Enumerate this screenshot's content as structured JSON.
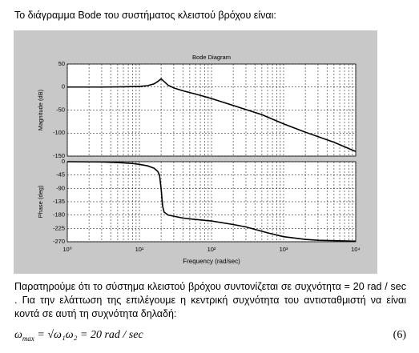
{
  "header_text": "Το διάγραμμα Bode του συστήματος κλειστού βρόχου είναι:",
  "chart_data": [
    {
      "type": "line",
      "title": "Bode Diagram",
      "y_label": "Magnitude (dB)",
      "xscale": "log",
      "grid": true,
      "xlim": [
        1,
        10000
      ],
      "ylim": [
        -150,
        50
      ],
      "yticks": [
        -150,
        -100,
        -50,
        0,
        50
      ],
      "series": [
        {
          "color": "#000000",
          "x": [
            1,
            3,
            6,
            10,
            13,
            16,
            18,
            20,
            22,
            25,
            30,
            40,
            50,
            70,
            100,
            200,
            500,
            1000,
            2000,
            5000,
            10000
          ],
          "values": [
            0,
            0,
            0.5,
            1.5,
            3,
            7,
            12,
            18,
            12,
            4,
            -2,
            -8,
            -12,
            -18,
            -25,
            -40,
            -60,
            -80,
            -98,
            -120,
            -140
          ]
        }
      ]
    },
    {
      "type": "line",
      "y_label": "Phase (deg)",
      "x_label": "Frequency (rad/sec)",
      "xscale": "log",
      "grid": true,
      "xlim": [
        1,
        10000
      ],
      "ylim": [
        -270,
        0
      ],
      "xticks": [
        {
          "value": 1,
          "label": "10⁰"
        },
        {
          "value": 10,
          "label": "10¹"
        },
        {
          "value": 100,
          "label": "10²"
        },
        {
          "value": 1000,
          "label": "10³"
        },
        {
          "value": 10000,
          "label": "10⁴"
        }
      ],
      "yticks": [
        -270,
        -225,
        -180,
        -135,
        -90,
        -45,
        0
      ],
      "series": [
        {
          "color": "#000000",
          "x": [
            1,
            3,
            5,
            8,
            10,
            13,
            16,
            18,
            19,
            20,
            21,
            22,
            25,
            30,
            40,
            60,
            100,
            200,
            300,
            600,
            1000,
            2000,
            3000,
            10000
          ],
          "values": [
            0,
            -1,
            -3,
            -6,
            -9,
            -14,
            -22,
            -33,
            -45,
            -90,
            -150,
            -170,
            -180,
            -184,
            -190,
            -195,
            -200,
            -212,
            -220,
            -240,
            -253,
            -262,
            -265,
            -268
          ]
        }
      ]
    }
  ],
  "paragraph": "Παρατηρούμε ότι το σύστημα κλειστού βρόχου συντονίζεται σε συχνότητα = 20 rad / sec . Για την ελάττωση της επιλέγουμε η κεντρική συχνότητα του αντισταθμιστή να είναι κοντά σε αυτή τη συχνότητα δηλαδή:",
  "equation": {
    "symbol": "ω",
    "subscript": "max",
    "rhs": " = √ω₁ω₂ = 20 rad / sec",
    "number": "(6)"
  }
}
